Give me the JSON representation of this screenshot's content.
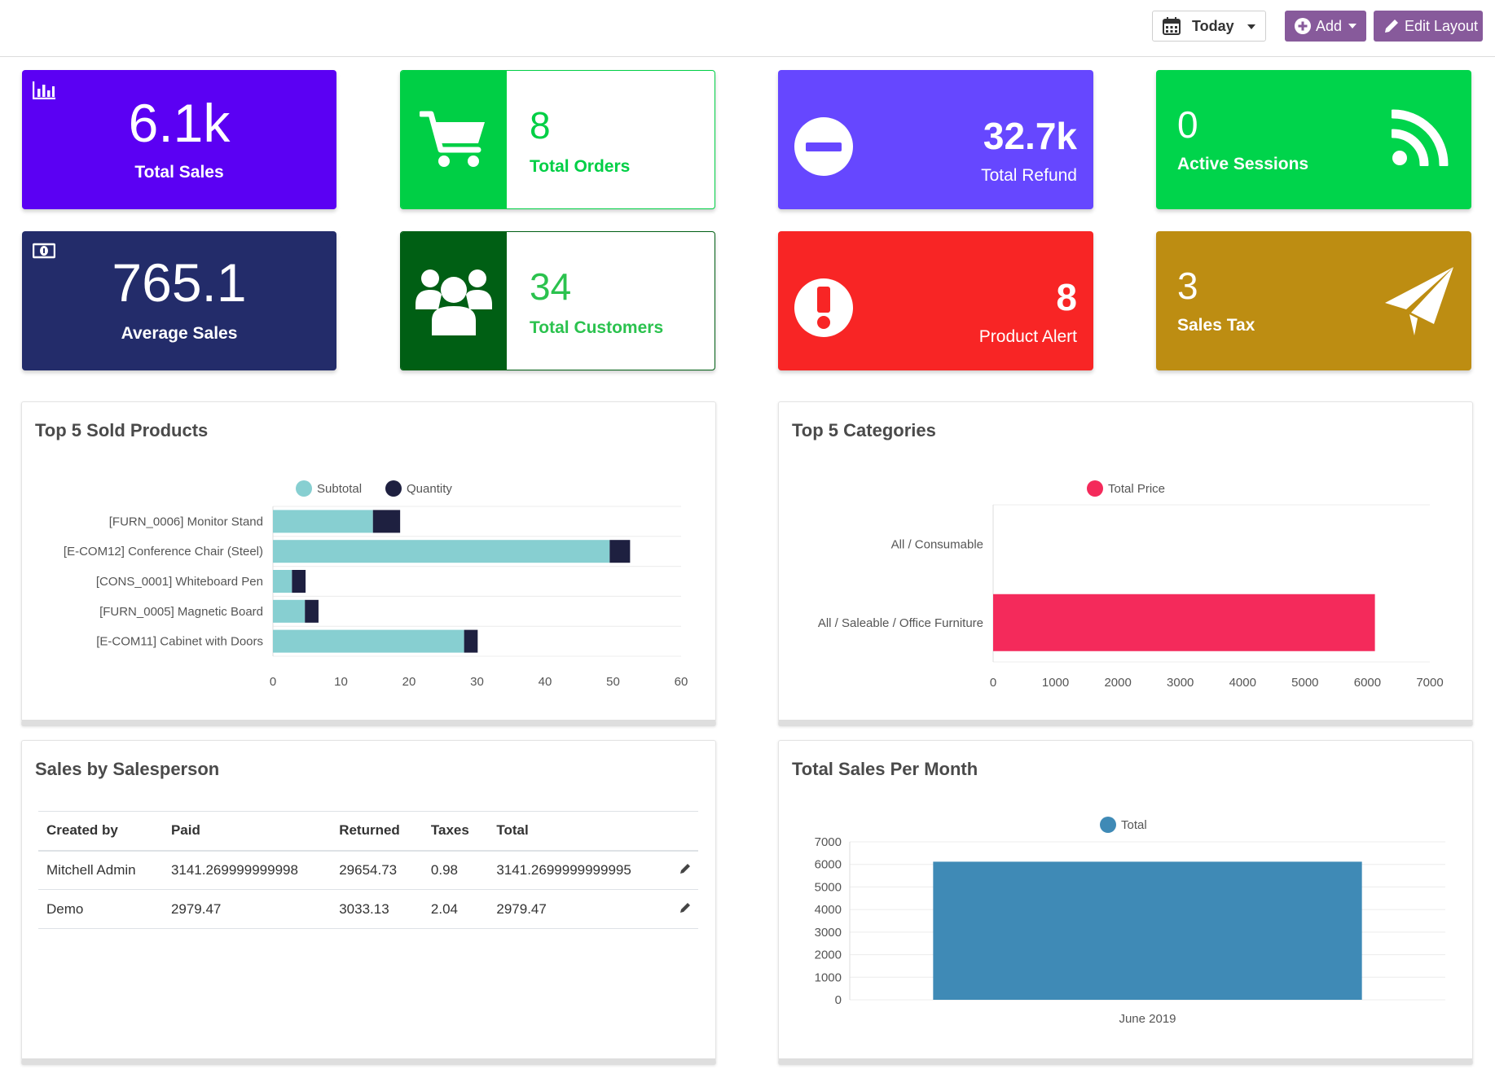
{
  "toolbar": {
    "date_filter": "Today",
    "add_label": "Add",
    "edit_layout_label": "Edit Layout",
    "accent_color": "#875a9b"
  },
  "kpis": {
    "total_sales": {
      "value": "6.1k",
      "label": "Total Sales",
      "color": "#5b00f3",
      "icon": "bar-chart-icon"
    },
    "total_orders": {
      "value": "8",
      "label": "Total Orders",
      "color": "#00cf45",
      "icon": "shopping-cart-icon"
    },
    "total_refund": {
      "value": "32.7k",
      "label": "Total Refund",
      "color": "#6647ff",
      "icon": "minus-circle-icon"
    },
    "active_sessions": {
      "value": "0",
      "label": "Active Sessions",
      "color": "#00d44b",
      "icon": "rss-icon"
    },
    "average_sales": {
      "value": "765.1",
      "label": "Average Sales",
      "color": "#232c6a",
      "icon": "money-icon"
    },
    "total_customers": {
      "value": "34",
      "label": "Total Customers",
      "color": "#005f14",
      "text_color": "#2bc24e",
      "icon": "users-icon"
    },
    "product_alert": {
      "value": "8",
      "label": "Product Alert",
      "color": "#f82525",
      "icon": "exclamation-circle-icon"
    },
    "sales_tax": {
      "value": "3",
      "label": "Sales Tax",
      "color": "#bd8d12",
      "icon": "paper-plane-icon"
    }
  },
  "panels": {
    "top_products": {
      "title": "Top 5 Sold Products"
    },
    "top_categories": {
      "title": "Top 5 Categories"
    },
    "salesperson": {
      "title": "Sales by Salesperson"
    },
    "sales_month": {
      "title": "Total Sales Per Month"
    }
  },
  "chart_data": [
    {
      "type": "bar",
      "orientation": "horizontal",
      "stacked": true,
      "title": "Top 5 Sold Products",
      "categories": [
        "[FURN_0006] Monitor Stand",
        "[E-COM12] Conference Chair (Steel)",
        "[CONS_0001] Whiteboard Pen",
        "[FURN_0005] Magnetic Board",
        "[E-COM11] Cabinet with Doors"
      ],
      "series": [
        {
          "name": "Subtotal",
          "color": "#87cfd1",
          "values": [
            14.7,
            49.5,
            2.8,
            4.7,
            28.1
          ]
        },
        {
          "name": "Quantity",
          "color": "#1e2040",
          "values": [
            4,
            3,
            2,
            2,
            2
          ]
        }
      ],
      "xlim": [
        0,
        60
      ],
      "xticks": [
        0,
        10,
        20,
        30,
        40,
        50,
        60
      ],
      "legend": "top"
    },
    {
      "type": "bar",
      "orientation": "horizontal",
      "title": "Top 5 Categories",
      "categories": [
        "All / Consumable",
        "All / Saleable / Office Furniture"
      ],
      "series": [
        {
          "name": "Total Price",
          "color": "#f42a5b",
          "values": [
            0,
            6120
          ]
        }
      ],
      "xlim": [
        0,
        7000
      ],
      "xticks": [
        0,
        1000,
        2000,
        3000,
        4000,
        5000,
        6000,
        7000
      ],
      "legend": "top"
    },
    {
      "type": "bar",
      "title": "Total Sales Per Month",
      "categories": [
        "June 2019"
      ],
      "series": [
        {
          "name": "Total",
          "color": "#3f8ab6",
          "values": [
            6120
          ]
        }
      ],
      "ylim": [
        0,
        7000
      ],
      "yticks": [
        0,
        1000,
        2000,
        3000,
        4000,
        5000,
        6000,
        7000
      ],
      "legend": "top"
    },
    {
      "type": "table",
      "title": "Sales by Salesperson",
      "columns": [
        "Created by",
        "Paid",
        "Returned",
        "Taxes",
        "Total"
      ],
      "rows": [
        [
          "Mitchell Admin",
          "3141.269999999998",
          "29654.73",
          "0.98",
          "3141.2699999999995"
        ],
        [
          "Demo",
          "2979.47",
          "3033.13",
          "2.04",
          "2979.47"
        ]
      ]
    }
  ]
}
